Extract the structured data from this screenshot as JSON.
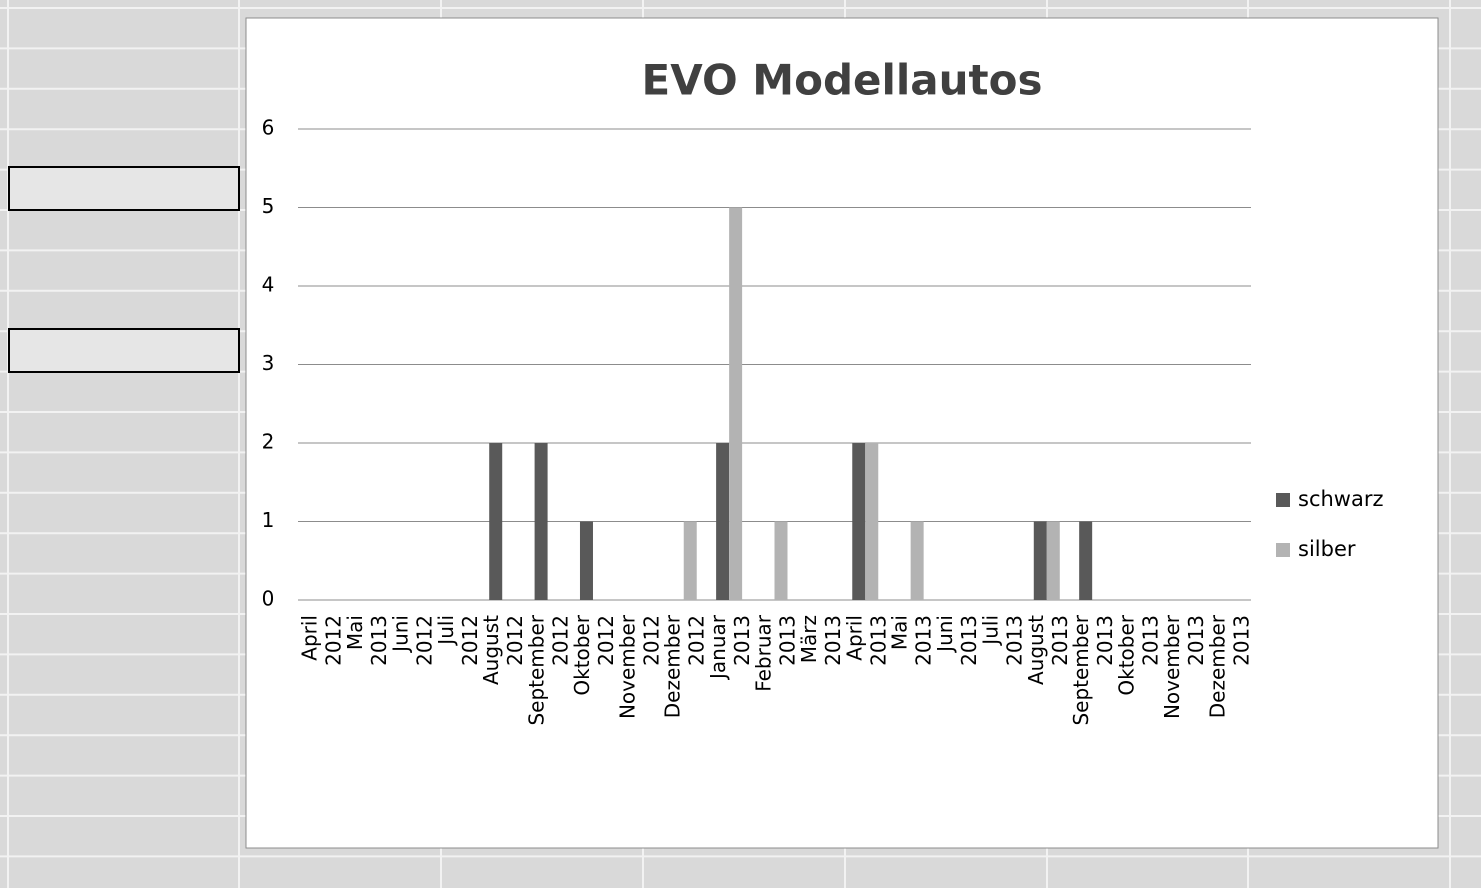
{
  "chart_data": {
    "type": "bar",
    "title": "EVO Modellautos",
    "categories": [
      "April 2012",
      "Mai 2013",
      "Juni 2012",
      "Juli 2012",
      "August 2012",
      "September 2012",
      "Oktober 2012",
      "November 2012",
      "Dezember 2012",
      "Januar 2013",
      "Februar 2013",
      "März 2013",
      "April 2013",
      "Mai 2013",
      "Juni 2013",
      "Juli 2013",
      "August 2013",
      "September 2013",
      "Oktober 2013",
      "November 2013",
      "Dezember 2013"
    ],
    "series": [
      {
        "name": "schwarz",
        "color": "#595959",
        "values": [
          0,
          0,
          0,
          0,
          2,
          2,
          1,
          0,
          0,
          2,
          0,
          0,
          2,
          0,
          0,
          0,
          1,
          1,
          0,
          0,
          0
        ]
      },
      {
        "name": "silber",
        "color": "#b3b3b3",
        "values": [
          0,
          0,
          0,
          0,
          0,
          0,
          0,
          0,
          1,
          5,
          1,
          0,
          2,
          1,
          0,
          0,
          1,
          0,
          0,
          0,
          0
        ]
      }
    ],
    "ylim": [
      0,
      6
    ],
    "yticks": [
      0,
      1,
      2,
      3,
      4,
      5,
      6
    ],
    "grid": true,
    "legend": "right"
  }
}
